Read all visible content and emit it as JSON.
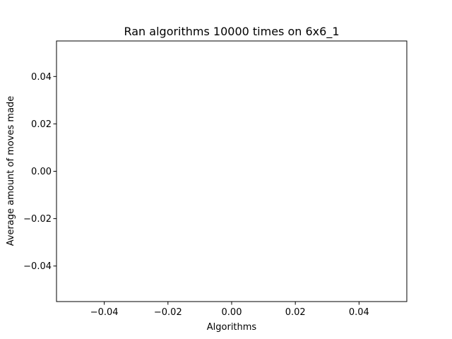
{
  "chart_data": {
    "type": "bar",
    "title": "Ran algorithms 10000 times on 6x6_1",
    "xlabel": "Algorithms",
    "ylabel": "Average amount of moves made",
    "categories": [],
    "values": [],
    "xlim": [
      -0.055,
      0.055
    ],
    "ylim": [
      -0.055,
      0.055
    ],
    "x_ticks": [
      -0.04,
      -0.02,
      0.0,
      0.02,
      0.04
    ],
    "x_tick_labels": [
      "−0.04",
      "−0.02",
      "0.00",
      "0.02",
      "0.04"
    ],
    "y_ticks": [
      -0.04,
      -0.02,
      0.0,
      0.02,
      0.04
    ],
    "y_tick_labels": [
      "−0.04",
      "−0.02",
      "0.00",
      "0.02",
      "0.04"
    ],
    "grid": false,
    "legend": "none"
  }
}
